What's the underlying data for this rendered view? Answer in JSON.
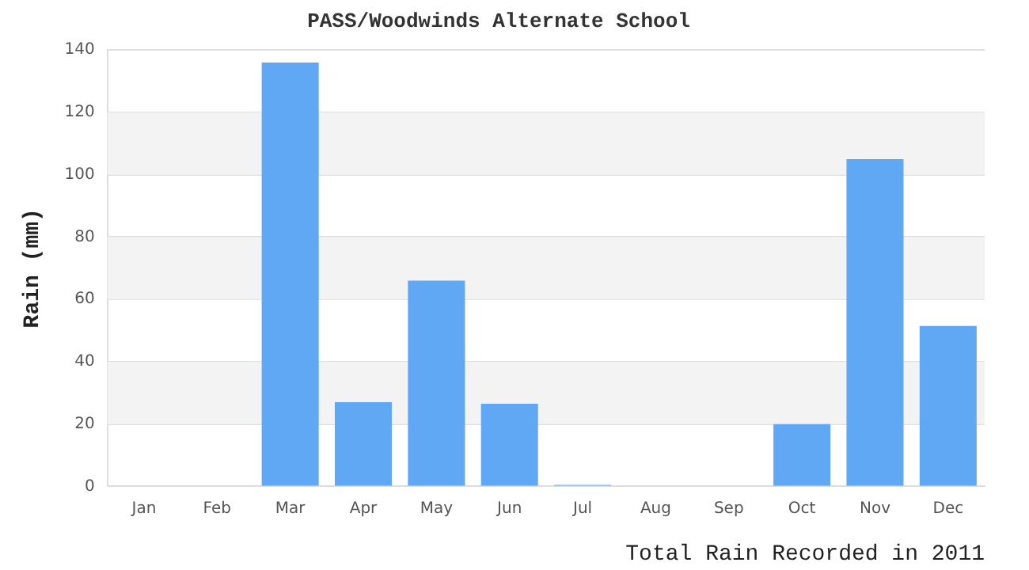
{
  "chart_data": {
    "type": "bar",
    "title": "PASS/Woodwinds Alternate School",
    "xlabel": "Total Rain Recorded in 2011",
    "ylabel": "Rain (mm)",
    "categories": [
      "Jan",
      "Feb",
      "Mar",
      "Apr",
      "May",
      "Jun",
      "Jul",
      "Aug",
      "Sep",
      "Oct",
      "Nov",
      "Dec"
    ],
    "values": [
      0,
      0,
      136,
      27,
      66,
      26.5,
      0.5,
      0,
      0,
      20,
      105,
      51.5
    ],
    "color": "#60a8f4",
    "ylim": [
      0,
      140
    ],
    "yticks": [
      0,
      20,
      40,
      60,
      80,
      100,
      120,
      140
    ],
    "grid": "y",
    "legend": false
  }
}
